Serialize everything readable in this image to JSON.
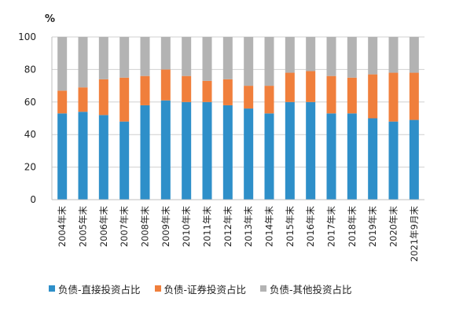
{
  "chart_data": {
    "type": "bar",
    "stacked": true,
    "unit_label": "%",
    "categories": [
      "2004年末",
      "2005年末",
      "2006年末",
      "2007年末",
      "2008年末",
      "2009年末",
      "2010年末",
      "2011年末",
      "2012年末",
      "2013年末",
      "2014年末",
      "2015年末",
      "2016年末",
      "2017年末",
      "2018年末",
      "2019年末",
      "2020年末",
      "2021年9月末"
    ],
    "series": [
      {
        "name": "负债-直接投资占比",
        "color": "#2e8fc9",
        "values": [
          53,
          54,
          52,
          48,
          58,
          61,
          60,
          60,
          58,
          56,
          53,
          60,
          60,
          53,
          53,
          50,
          48,
          49
        ]
      },
      {
        "name": "负债-证券投资占比",
        "color": "#f07f3c",
        "values": [
          14,
          15,
          22,
          27,
          18,
          19,
          16,
          13,
          16,
          14,
          17,
          18,
          19,
          23,
          22,
          27,
          30,
          29
        ]
      },
      {
        "name": "负债-其他投资占比",
        "color": "#b3b3b3",
        "values": [
          33,
          31,
          26,
          25,
          24,
          20,
          24,
          27,
          26,
          30,
          30,
          22,
          21,
          24,
          25,
          23,
          22,
          22
        ]
      }
    ],
    "ylim": [
      0,
      100
    ],
    "yticks": [
      0,
      20,
      40,
      60,
      80,
      100
    ],
    "grid": true,
    "legend_position": "bottom"
  }
}
